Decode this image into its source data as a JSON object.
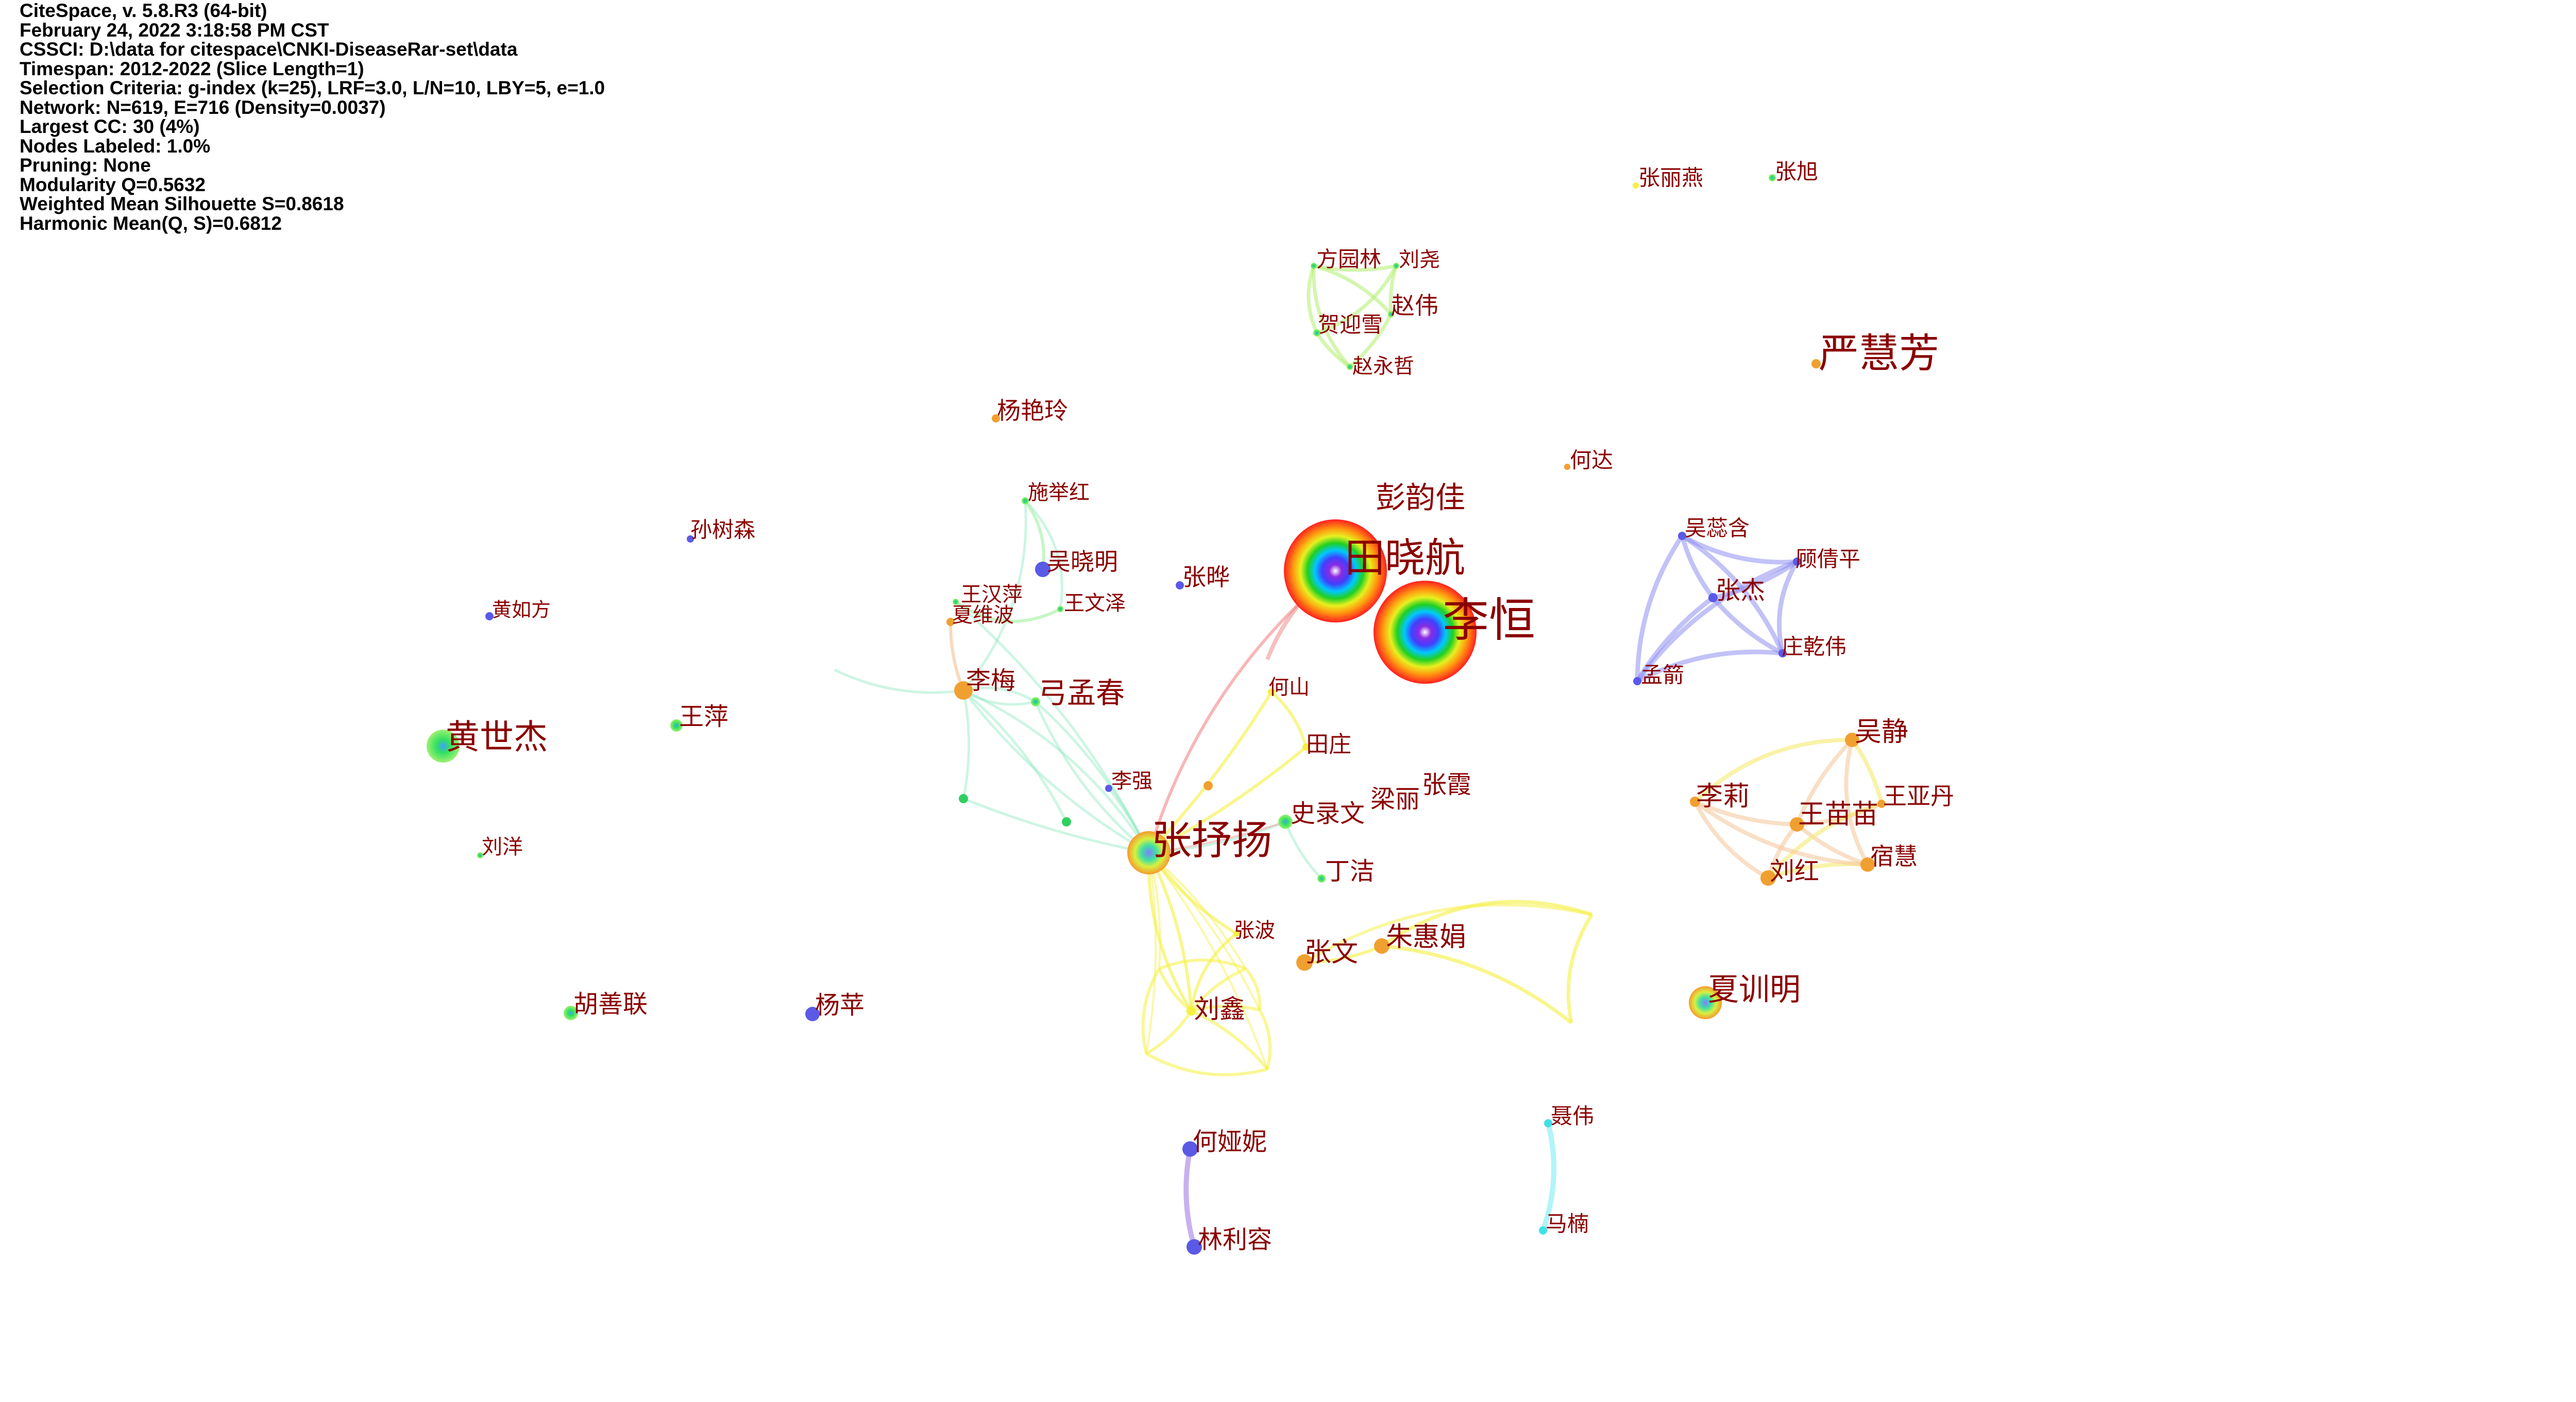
{
  "info_lines": [
    "CiteSpace, v. 5.8.R3 (64-bit)",
    "February 24, 2022 3:18:58 PM CST",
    "CSSCI: D:\\data for citespace\\CNKI-DiseaseRar-set\\data",
    "Timespan: 2012-2022 (Slice Length=1)",
    "Selection Criteria: g-index (k=25), LRF=3.0, L/N=10, LBY=5, e=1.0",
    "Network: N=619, E=716 (Density=0.0037)",
    "Largest CC: 30 (4%)",
    "Nodes Labeled: 1.0%",
    "Pruning: None",
    "Modularity Q=0.5632",
    "Weighted Mean Silhouette S=0.8618",
    "Harmonic Mean(Q, S)=0.6812"
  ],
  "colors": {
    "label": "#8b0000",
    "green": "#7ee36b",
    "blue": "#5a5ae6",
    "orange": "#f0a030",
    "yellow": "#f5f040",
    "cyan": "#40e0e8",
    "lavender": "#b090e8",
    "aqua": "#90e8c0"
  },
  "nodes": [
    {
      "id": "tianxiaohang",
      "label": "田晓航",
      "kind": "rainbow"
    },
    {
      "id": "liheng",
      "label": "李恒",
      "kind": "rainbow"
    },
    {
      "id": "zhangshuyang",
      "label": "张抒扬",
      "kind": "multi"
    },
    {
      "id": "huangshijie",
      "label": "黄世杰",
      "kind": "green"
    },
    {
      "id": "yanhuifang",
      "label": "严慧芳",
      "kind": "orange"
    },
    {
      "id": "xiaxunming",
      "label": "夏训明",
      "kind": "multi"
    },
    {
      "id": "pengyunjia",
      "label": "彭韵佳",
      "kind": "none"
    },
    {
      "id": "gongmengchun",
      "label": "弓孟春",
      "kind": "green"
    },
    {
      "id": "limei",
      "label": "李梅",
      "kind": "orange"
    },
    {
      "id": "liuxin",
      "label": "刘鑫",
      "kind": "yellow"
    },
    {
      "id": "zhangwen",
      "label": "张文",
      "kind": "orange"
    },
    {
      "id": "zhuhuijuan",
      "label": "朱惠娟",
      "kind": "orange"
    },
    {
      "id": "wangmiaomiao",
      "label": "王苗苗",
      "kind": "orange"
    },
    {
      "id": "wujing",
      "label": "吴静",
      "kind": "orange"
    },
    {
      "id": "lili",
      "label": "李莉",
      "kind": "orange"
    },
    {
      "id": "liuhong",
      "label": "刘红",
      "kind": "orange"
    },
    {
      "id": "suhui",
      "label": "宿慧",
      "kind": "orange"
    },
    {
      "id": "wangyadan",
      "label": "王亚丹",
      "kind": "orange"
    },
    {
      "id": "zhangjie",
      "label": "张杰",
      "kind": "blue"
    },
    {
      "id": "wuruihan",
      "label": "吴蕊含",
      "kind": "blue"
    },
    {
      "id": "guqianping",
      "label": "顾倩平",
      "kind": "blue"
    },
    {
      "id": "zhuangqianwei",
      "label": "庄乾伟",
      "kind": "blue"
    },
    {
      "id": "mengjian",
      "label": "孟箭",
      "kind": "blue"
    },
    {
      "id": "fangyuanlin",
      "label": "方园林",
      "kind": "green"
    },
    {
      "id": "liuyao",
      "label": "刘尧",
      "kind": "green"
    },
    {
      "id": "zhaowei",
      "label": "赵伟",
      "kind": "green"
    },
    {
      "id": "heyingxue",
      "label": "贺迎雪",
      "kind": "green"
    },
    {
      "id": "zhaoyongzhe",
      "label": "赵永哲",
      "kind": "green"
    },
    {
      "id": "zhanglianyan",
      "label": "张丽燕",
      "kind": "yellow"
    },
    {
      "id": "zhangxu",
      "label": "张旭",
      "kind": "green"
    },
    {
      "id": "yangyanling",
      "label": "杨艳玲",
      "kind": "orange"
    },
    {
      "id": "heda",
      "label": "何达",
      "kind": "orange"
    },
    {
      "id": "shijuhong",
      "label": "施举红",
      "kind": "green"
    },
    {
      "id": "wuxiaoming",
      "label": "吴晓明",
      "kind": "blue"
    },
    {
      "id": "wanghanping",
      "label": "王汉萍",
      "kind": "green"
    },
    {
      "id": "xiaweibo",
      "label": "夏维波",
      "kind": "orange"
    },
    {
      "id": "wangwenze",
      "label": "王文泽",
      "kind": "green"
    },
    {
      "id": "zhangye",
      "label": "张晔",
      "kind": "blue"
    },
    {
      "id": "sunshusen",
      "label": "孙树森",
      "kind": "blue"
    },
    {
      "id": "huangrufang",
      "label": "黄如方",
      "kind": "blue"
    },
    {
      "id": "wangping",
      "label": "王萍",
      "kind": "green"
    },
    {
      "id": "liuyang",
      "label": "刘洋",
      "kind": "green"
    },
    {
      "id": "heshan",
      "label": "何山",
      "kind": "yellow"
    },
    {
      "id": "tianzhuang",
      "label": "田庄",
      "kind": "yellow"
    },
    {
      "id": "liqiang",
      "label": "李强",
      "kind": "blue"
    },
    {
      "id": "shiluwen",
      "label": "史录文",
      "kind": "green"
    },
    {
      "id": "liangli",
      "label": "梁丽",
      "kind": "none"
    },
    {
      "id": "zhangxia",
      "label": "张霞",
      "kind": "none"
    },
    {
      "id": "dingjie",
      "label": "丁洁",
      "kind": "green"
    },
    {
      "id": "zhangbo",
      "label": "张波",
      "kind": "yellow"
    },
    {
      "id": "hushanlian",
      "label": "胡善联",
      "kind": "green"
    },
    {
      "id": "yangping",
      "label": "杨苹",
      "kind": "blue"
    },
    {
      "id": "heyani",
      "label": "何娅妮",
      "kind": "blue"
    },
    {
      "id": "linlirong",
      "label": "林利容",
      "kind": "blue"
    },
    {
      "id": "niewei",
      "label": "聂伟",
      "kind": "cyan"
    },
    {
      "id": "manan",
      "label": "马楠",
      "kind": "cyan"
    }
  ]
}
